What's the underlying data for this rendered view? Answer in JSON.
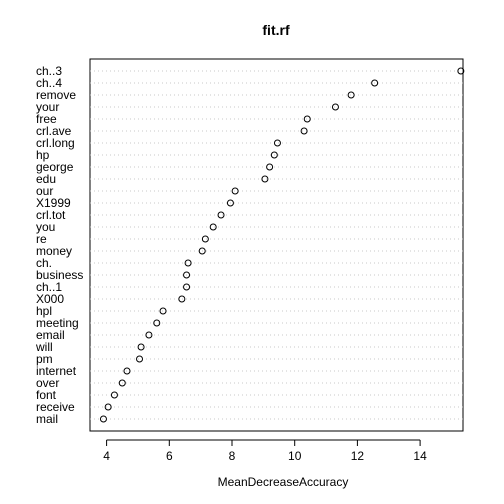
{
  "chart_data": {
    "type": "scatter",
    "title": "fit.rf",
    "xlabel": "MeanDecreaseAccuracy",
    "ylabel": "",
    "xticks": [
      4,
      6,
      8,
      10,
      12,
      14
    ],
    "grid": "dotted horizontal",
    "categories": [
      "ch..3",
      "ch..4",
      "remove",
      "your",
      "free",
      "crl.ave",
      "crl.long",
      "hp",
      "george",
      "edu",
      "our",
      "X1999",
      "crl.tot",
      "you",
      "re",
      "money",
      "ch.",
      "business",
      "ch..1",
      "X000",
      "hpl",
      "meeting",
      "email",
      "will",
      "pm",
      "internet",
      "over",
      "font",
      "receive",
      "mail"
    ],
    "values": [
      15.3,
      12.55,
      11.8,
      11.3,
      10.4,
      10.3,
      9.45,
      9.35,
      9.2,
      9.05,
      8.1,
      7.95,
      7.65,
      7.4,
      7.15,
      7.05,
      6.6,
      6.55,
      6.55,
      6.4,
      5.8,
      5.6,
      5.35,
      5.1,
      5.05,
      4.65,
      4.5,
      4.25,
      4.05,
      3.9
    ]
  }
}
